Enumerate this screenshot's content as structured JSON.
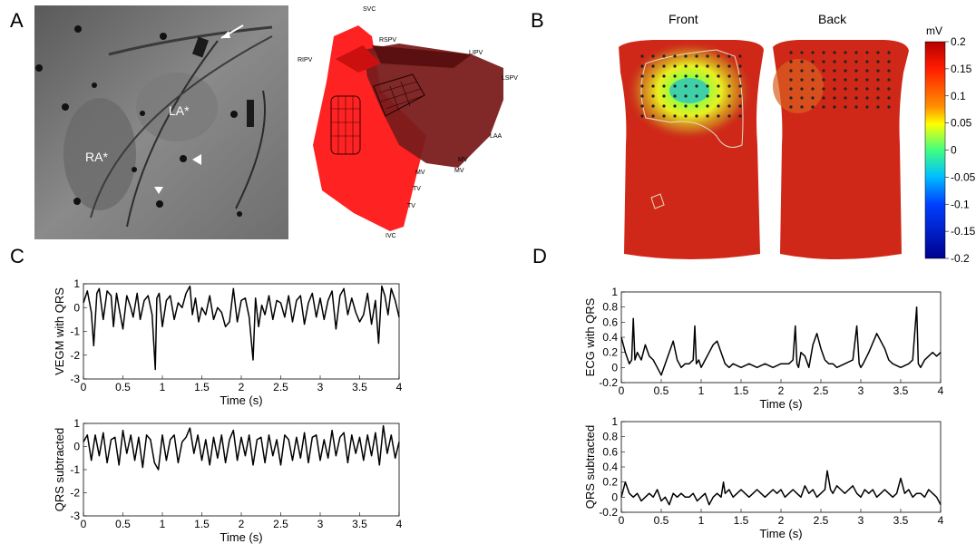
{
  "panels": {
    "A": {
      "letter": "A",
      "xray_labels": {
        "ra": "RA*",
        "la": "LA*"
      },
      "model_labels": [
        "SVC",
        "RSPV",
        "LIPV",
        "RIPV",
        "LSPV",
        "LAA",
        "MV",
        "MV",
        "MV",
        "TV",
        "TV",
        "IVC"
      ]
    },
    "B": {
      "letter": "B",
      "front_label": "Front",
      "back_label": "Back",
      "colorbar": {
        "unit": "mV",
        "min": -0.2,
        "max": 0.2,
        "ticks": [
          "0.2",
          "0.15",
          "0.1",
          "0.05",
          "0",
          "-0.05",
          "-0.1",
          "-0.15",
          "-0.2"
        ],
        "colors": [
          "#b30000",
          "#ff1a00",
          "#ff8000",
          "#ffff00",
          "#40ff80",
          "#00c0ff",
          "#0040ff",
          "#0000c0",
          "#00008f"
        ]
      }
    },
    "C": {
      "letter": "C"
    },
    "D": {
      "letter": "D"
    }
  },
  "chart_data": [
    {
      "id": "C-top",
      "type": "line",
      "ylabel": "VEGM with QRS",
      "xlabel": "Time (s)",
      "xlim": [
        0,
        4
      ],
      "ylim": [
        -3,
        1
      ],
      "xticks": [
        "0",
        "0.5",
        "1",
        "1.5",
        "2",
        "2.5",
        "3",
        "3.5",
        "4"
      ],
      "yticks": [
        "1",
        "0",
        "-1",
        "-2",
        "-3"
      ],
      "series": [
        {
          "x": [
            0,
            0.05,
            0.1,
            0.13,
            0.17,
            0.2,
            0.25,
            0.3,
            0.35,
            0.38,
            0.42,
            0.45,
            0.5,
            0.55,
            0.6,
            0.63,
            0.68,
            0.72,
            0.77,
            0.82,
            0.87,
            0.91,
            0.93,
            0.96,
            1.0,
            1.05,
            1.1,
            1.15,
            1.2,
            1.25,
            1.3,
            1.35,
            1.38,
            1.42,
            1.46,
            1.5,
            1.55,
            1.6,
            1.65,
            1.7,
            1.75,
            1.8,
            1.85,
            1.9,
            1.95,
            2.0,
            2.05,
            2.1,
            2.15,
            2.18,
            2.22,
            2.26,
            2.3,
            2.35,
            2.4,
            2.45,
            2.5,
            2.55,
            2.6,
            2.65,
            2.7,
            2.75,
            2.8,
            2.85,
            2.9,
            2.95,
            3.0,
            3.05,
            3.1,
            3.15,
            3.2,
            3.25,
            3.3,
            3.35,
            3.4,
            3.45,
            3.5,
            3.55,
            3.6,
            3.65,
            3.7,
            3.74,
            3.78,
            3.82,
            3.86,
            3.9,
            3.95,
            4.0
          ],
          "y": [
            0.2,
            0.7,
            -0.2,
            -1.6,
            0.6,
            0.8,
            -0.5,
            0.7,
            0.5,
            -0.8,
            0.6,
            0.0,
            -0.9,
            0.5,
            0.0,
            -0.4,
            0.6,
            -0.5,
            0.3,
            0.5,
            -0.3,
            -2.6,
            0.4,
            0.6,
            -0.8,
            0.3,
            0.5,
            -0.5,
            0.2,
            0.0,
            0.6,
            0.9,
            -0.3,
            0.4,
            -0.6,
            0.0,
            -0.3,
            0.5,
            -0.5,
            0.0,
            -0.2,
            -0.8,
            -0.6,
            0.8,
            -0.6,
            0.3,
            0.4,
            -0.4,
            -2.2,
            0.4,
            -0.8,
            0.1,
            -0.3,
            0.5,
            -0.5,
            0.3,
            0.2,
            -0.4,
            0.5,
            -0.6,
            0.3,
            0.5,
            -0.7,
            0.2,
            0.6,
            -0.4,
            0.4,
            -0.5,
            0.3,
            0.7,
            -0.9,
            0.5,
            0.8,
            -0.3,
            0.4,
            -0.2,
            -0.6,
            -0.3,
            0.6,
            -0.7,
            0.3,
            -1.5,
            0.9,
            0.5,
            -0.3,
            0.8,
            0.3,
            -0.4
          ]
        }
      ]
    },
    {
      "id": "C-bottom",
      "type": "line",
      "ylabel": "QRS subtracted",
      "xlabel": "Time (s)",
      "xlim": [
        0,
        4
      ],
      "ylim": [
        -3,
        1
      ],
      "xticks": [
        "0",
        "0.5",
        "1",
        "1.5",
        "2",
        "2.5",
        "3",
        "3.5",
        "4"
      ],
      "yticks": [
        "1",
        "0",
        "-1",
        "-2",
        "-3"
      ],
      "series": [
        {
          "x": [
            0,
            0.05,
            0.1,
            0.15,
            0.2,
            0.25,
            0.3,
            0.35,
            0.4,
            0.45,
            0.5,
            0.55,
            0.6,
            0.65,
            0.7,
            0.75,
            0.8,
            0.85,
            0.9,
            0.95,
            1.0,
            1.05,
            1.1,
            1.15,
            1.2,
            1.25,
            1.3,
            1.35,
            1.4,
            1.45,
            1.5,
            1.55,
            1.6,
            1.65,
            1.7,
            1.75,
            1.8,
            1.85,
            1.9,
            1.95,
            2.0,
            2.05,
            2.1,
            2.15,
            2.2,
            2.25,
            2.3,
            2.35,
            2.4,
            2.45,
            2.5,
            2.55,
            2.6,
            2.65,
            2.7,
            2.75,
            2.8,
            2.85,
            2.9,
            2.95,
            3.0,
            3.05,
            3.1,
            3.15,
            3.2,
            3.25,
            3.3,
            3.35,
            3.4,
            3.45,
            3.5,
            3.55,
            3.6,
            3.65,
            3.7,
            3.75,
            3.8,
            3.85,
            3.9,
            3.95,
            4.0
          ],
          "y": [
            0.2,
            0.5,
            -0.6,
            0.5,
            -0.4,
            0.6,
            -0.7,
            0.3,
            0.4,
            -0.8,
            0.7,
            -0.3,
            0.5,
            -0.6,
            0.4,
            -0.9,
            0.5,
            0.3,
            -0.7,
            -1.0,
            0.5,
            -0.6,
            0.3,
            0.5,
            -0.7,
            0.2,
            0.4,
            0.8,
            -0.3,
            0.5,
            -0.6,
            0.3,
            -0.8,
            0.4,
            -0.5,
            0.5,
            -0.7,
            0.3,
            0.7,
            -0.6,
            0.4,
            -0.4,
            0.5,
            -0.8,
            0.3,
            0.4,
            -0.7,
            0.5,
            -0.4,
            0.3,
            -0.8,
            0.5,
            0.3,
            -0.6,
            0.4,
            -0.5,
            0.6,
            -0.7,
            0.4,
            0.5,
            -0.6,
            0.3,
            -0.5,
            0.7,
            -0.4,
            0.4,
            0.6,
            -0.7,
            0.5,
            -0.3,
            0.4,
            -0.6,
            0.5,
            -0.4,
            0.6,
            -0.8,
            0.9,
            -0.3,
            0.5,
            -0.5,
            0.2
          ]
        }
      ]
    },
    {
      "id": "D-top",
      "type": "line",
      "ylabel": "ECG with QRS",
      "xlabel": "Time (s)",
      "xlim": [
        0,
        4
      ],
      "ylim": [
        -0.2,
        1
      ],
      "xticks": [
        "0",
        "0.5",
        "1",
        "1.5",
        "2",
        "2.5",
        "3",
        "3.5",
        "4"
      ],
      "yticks": [
        "1",
        "0.8",
        "0.6",
        "0.4",
        "0.2",
        "0",
        "-0.2"
      ],
      "series": [
        {
          "x": [
            0,
            0.05,
            0.1,
            0.13,
            0.15,
            0.17,
            0.2,
            0.25,
            0.3,
            0.35,
            0.4,
            0.45,
            0.5,
            0.55,
            0.6,
            0.65,
            0.7,
            0.75,
            0.8,
            0.85,
            0.9,
            0.92,
            0.94,
            0.97,
            1.0,
            1.05,
            1.1,
            1.15,
            1.2,
            1.25,
            1.3,
            1.35,
            1.4,
            1.5,
            1.6,
            1.7,
            1.8,
            1.9,
            2.0,
            2.1,
            2.15,
            2.18,
            2.2,
            2.22,
            2.25,
            2.3,
            2.35,
            2.4,
            2.45,
            2.5,
            2.55,
            2.6,
            2.65,
            2.7,
            2.8,
            2.9,
            2.95,
            2.98,
            3.0,
            3.03,
            3.1,
            3.2,
            3.3,
            3.35,
            3.4,
            3.5,
            3.6,
            3.65,
            3.7,
            3.72,
            3.75,
            3.8,
            3.85,
            3.9,
            3.95,
            4.0
          ],
          "y": [
            0.4,
            0.2,
            0.05,
            0.1,
            0.65,
            0.1,
            0.2,
            0.1,
            0.3,
            0.15,
            0.1,
            0.0,
            -0.1,
            0.05,
            0.2,
            0.35,
            0.1,
            0.0,
            0.05,
            0.05,
            0.1,
            0.55,
            0.05,
            0.1,
            0.0,
            0.1,
            0.2,
            0.3,
            0.35,
            0.2,
            0.05,
            0.0,
            0.05,
            0.0,
            0.05,
            0.0,
            0.05,
            0.0,
            0.05,
            0.05,
            0.1,
            0.55,
            0.05,
            0.0,
            0.2,
            0.15,
            0.0,
            0.3,
            0.45,
            0.25,
            0.1,
            0.05,
            0.05,
            0.0,
            0.05,
            0.1,
            0.55,
            0.05,
            0.0,
            0.05,
            0.2,
            0.45,
            0.25,
            0.1,
            0.05,
            0.0,
            0.05,
            0.1,
            0.8,
            0.05,
            0.0,
            0.1,
            0.15,
            0.2,
            0.15,
            0.2
          ]
        }
      ]
    },
    {
      "id": "D-bottom",
      "type": "line",
      "ylabel": "QRS subtracted",
      "xlabel": "Time (s)",
      "xlim": [
        0,
        4
      ],
      "ylim": [
        -0.2,
        1
      ],
      "xticks": [
        "0",
        "0.5",
        "1",
        "1.5",
        "2",
        "2.5",
        "3",
        "3.5",
        "4"
      ],
      "yticks": [
        "1",
        "0.8",
        "0.6",
        "0.4",
        "0.2",
        "0",
        "-0.2"
      ],
      "series": [
        {
          "x": [
            0,
            0.05,
            0.1,
            0.15,
            0.2,
            0.25,
            0.3,
            0.35,
            0.4,
            0.45,
            0.5,
            0.55,
            0.6,
            0.65,
            0.7,
            0.75,
            0.8,
            0.85,
            0.9,
            0.95,
            1.0,
            1.05,
            1.1,
            1.15,
            1.2,
            1.25,
            1.28,
            1.3,
            1.35,
            1.4,
            1.45,
            1.5,
            1.55,
            1.6,
            1.65,
            1.7,
            1.75,
            1.8,
            1.85,
            1.9,
            1.95,
            2.0,
            2.05,
            2.1,
            2.15,
            2.2,
            2.25,
            2.3,
            2.35,
            2.4,
            2.45,
            2.5,
            2.55,
            2.58,
            2.62,
            2.65,
            2.7,
            2.75,
            2.8,
            2.85,
            2.9,
            2.95,
            3.0,
            3.05,
            3.1,
            3.15,
            3.2,
            3.25,
            3.3,
            3.35,
            3.4,
            3.45,
            3.5,
            3.55,
            3.6,
            3.65,
            3.7,
            3.75,
            3.8,
            3.85,
            3.9,
            3.95,
            4.0
          ],
          "y": [
            0.0,
            0.2,
            0.05,
            0.0,
            0.05,
            -0.05,
            0.0,
            0.05,
            0.0,
            0.1,
            -0.05,
            0.0,
            -0.1,
            0.05,
            0.0,
            0.05,
            0.0,
            0.0,
            0.05,
            -0.05,
            0.0,
            0.05,
            -0.1,
            0.0,
            0.05,
            0.0,
            0.2,
            0.05,
            0.1,
            0.0,
            0.05,
            0.1,
            0.05,
            0.0,
            0.05,
            0.1,
            0.05,
            0.0,
            0.05,
            0.1,
            0.05,
            0.1,
            0.0,
            0.05,
            0.1,
            0.05,
            0.0,
            0.15,
            0.05,
            0.1,
            0.0,
            0.05,
            0.1,
            0.35,
            0.1,
            0.05,
            0.15,
            0.1,
            0.05,
            0.1,
            0.15,
            0.05,
            0.0,
            0.1,
            0.05,
            0.1,
            0.0,
            0.05,
            0.1,
            0.05,
            0.0,
            0.05,
            0.25,
            0.05,
            0.1,
            0.0,
            0.05,
            0.05,
            0.0,
            0.1,
            0.05,
            0.0,
            -0.1
          ]
        }
      ]
    }
  ]
}
